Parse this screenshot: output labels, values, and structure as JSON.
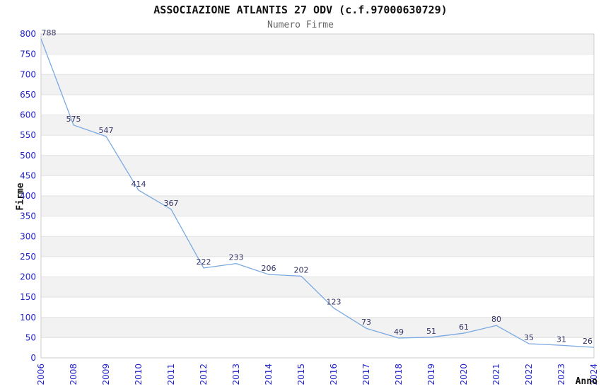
{
  "chart_data": {
    "type": "line",
    "title": "ASSOCIAZIONE ATLANTIS 27 ODV (c.f.97000630729)",
    "subtitle": "Numero Firme",
    "xlabel": "Anno",
    "ylabel": "Firme",
    "categories": [
      "2006",
      "2008",
      "2009",
      "2010",
      "2011",
      "2012",
      "2013",
      "2014",
      "2015",
      "2016",
      "2017",
      "2018",
      "2019",
      "2020",
      "2021",
      "2022",
      "2023",
      "2024"
    ],
    "values": [
      788,
      575,
      547,
      414,
      367,
      222,
      233,
      206,
      202,
      123,
      73,
      49,
      51,
      61,
      80,
      35,
      31,
      26
    ],
    "ylim": [
      0,
      800
    ],
    "ytick_step": 50,
    "xtick_rotation": 90,
    "legend": "none",
    "grid": "horizontal-bands-every-50",
    "data_labels_shown": true,
    "colors": {
      "line": "#7aa9e0",
      "tick_labels": "#2222cc",
      "data_labels": "#333366",
      "band": "#f2f2f2",
      "gridline": "#e2e2e2",
      "plot_border": "#cccccc",
      "title": "#111111",
      "subtitle": "#666666",
      "axis_label": "#111111",
      "background": "#ffffff"
    }
  }
}
